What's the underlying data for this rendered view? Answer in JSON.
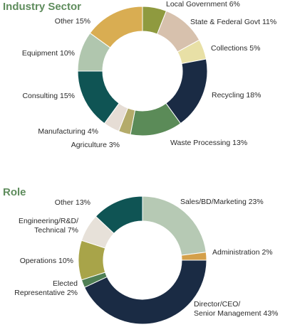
{
  "chart_data": [
    {
      "type": "pie",
      "title": "Industry Sector",
      "slices": [
        {
          "label": "Local Government 6%",
          "value": 6,
          "color": "#8f9a3f"
        },
        {
          "label": "State & Federal Govt 11%",
          "value": 11,
          "color": "#d7c1ad"
        },
        {
          "label": "Collections 5%",
          "value": 5,
          "color": "#e8e0a6"
        },
        {
          "label": "Recycling 18%",
          "value": 18,
          "color": "#1a2b44"
        },
        {
          "label": "Waste Processing 13%",
          "value": 13,
          "color": "#5b8b58"
        },
        {
          "label": "Agriculture 3%",
          "value": 3,
          "color": "#b4ab6a"
        },
        {
          "label": "Manufacturing 4%",
          "value": 4,
          "color": "#e6ddd5"
        },
        {
          "label": "Consulting 15%",
          "value": 15,
          "color": "#0f5454"
        },
        {
          "label": "Equipment 10%",
          "value": 10,
          "color": "#b0c6ae"
        },
        {
          "label": "Other 15%",
          "value": 15,
          "color": "#d9ad52"
        }
      ]
    },
    {
      "type": "pie",
      "title": "Role",
      "slices": [
        {
          "label": "Sales/BD/Marketing 23%",
          "value": 23,
          "color": "#b6c9b4"
        },
        {
          "label": "Administration 2%",
          "value": 2,
          "color": "#d4a04a"
        },
        {
          "label": "Director/CEO/\nSenior Management 43%",
          "value": 43,
          "color": "#1a2b44"
        },
        {
          "label": "Elected\nRepresentative 2%",
          "value": 2,
          "color": "#4f7f54"
        },
        {
          "label": "Operations 10%",
          "value": 10,
          "color": "#a8a449"
        },
        {
          "label": "Engineering/R&D/\nTechnical 7%",
          "value": 7,
          "color": "#e7e1d9"
        },
        {
          "label": "Other 13%",
          "value": 13,
          "color": "#0f5454"
        }
      ]
    }
  ]
}
